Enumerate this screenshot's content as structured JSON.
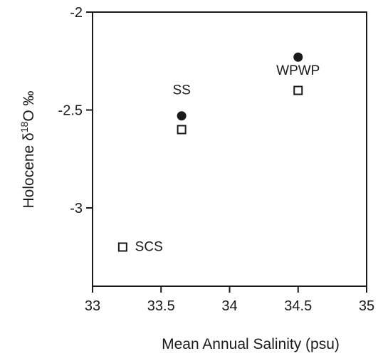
{
  "chart_data": {
    "type": "scatter",
    "title": "",
    "xlabel": "Mean Annual Salinity (psu)",
    "ylabel": {
      "prefix": "Holocene δ",
      "superscript": "18",
      "suffix": "O ‰"
    },
    "xlim": [
      33,
      35
    ],
    "ylim": [
      -3.4,
      -2
    ],
    "xticks": [
      {
        "value": 33,
        "label": "33"
      },
      {
        "value": 33.5,
        "label": "33.5"
      },
      {
        "value": 34,
        "label": "34"
      },
      {
        "value": 34.5,
        "label": "34.5"
      },
      {
        "value": 35,
        "label": "35"
      }
    ],
    "yticks": [
      {
        "value": -2,
        "label": "-2"
      },
      {
        "value": -2.5,
        "label": "-2.5"
      },
      {
        "value": -3,
        "label": "-3"
      }
    ],
    "grid": false,
    "series": [
      {
        "marker": "filled-circle",
        "color": "#1a1a1a",
        "points": [
          {
            "x": 33.65,
            "y": -2.53
          },
          {
            "x": 34.5,
            "y": -2.23
          }
        ]
      },
      {
        "marker": "open-square",
        "color": "#1a1a1a",
        "points": [
          {
            "x": 33.22,
            "y": -3.2
          },
          {
            "x": 33.65,
            "y": -2.6
          },
          {
            "x": 34.5,
            "y": -2.4
          }
        ]
      }
    ],
    "annotations": [
      {
        "text": "SS",
        "x": 33.65,
        "y": -2.42,
        "anchor": "middle"
      },
      {
        "text": "WPWP",
        "x": 34.5,
        "y": -2.32,
        "anchor": "middle"
      },
      {
        "text": "SCS",
        "x": 33.31,
        "y": -3.22,
        "anchor": "start"
      }
    ]
  }
}
